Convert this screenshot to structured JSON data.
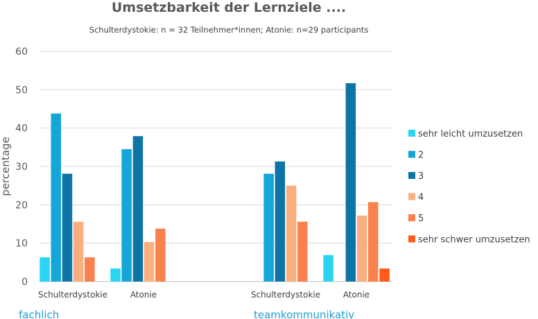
{
  "chart_data": {
    "type": "bar",
    "title": "Umsetzbarkeit der Lernziele ....",
    "subtitle": "Schulterdystokie: n = 32 Teilnehmer*innen; Atonie: n=29 participants",
    "ylabel": "percentage",
    "xlabel": "",
    "ylim": [
      0,
      60
    ],
    "yticks": [
      "0",
      "10",
      "20",
      "30",
      "40",
      "50",
      "60"
    ],
    "grid": true,
    "legend_position": "right",
    "categories": [
      "Schulterdystokie",
      "Atonie",
      "Schulterdystokie",
      "Atonie"
    ],
    "groups": [
      {
        "label": "fachlich",
        "color": "#1f9ed4"
      },
      {
        "label": "teamkommunikativ",
        "color": "#1f9ed4"
      }
    ],
    "series": [
      {
        "name": "sehr leicht umzusetzen",
        "color": "#2ad4f2",
        "values": [
          6.3,
          3.4,
          0,
          6.9
        ]
      },
      {
        "name": "2",
        "color": "#14a6d7",
        "values": [
          43.8,
          34.5,
          28.1,
          0
        ]
      },
      {
        "name": "3",
        "color": "#0e74a6",
        "values": [
          28.1,
          37.9,
          31.3,
          51.7
        ]
      },
      {
        "name": "4",
        "color": "#f9b07e",
        "values": [
          15.6,
          10.3,
          25.0,
          17.2
        ]
      },
      {
        "name": "5",
        "color": "#f9814b",
        "values": [
          6.3,
          13.8,
          15.6,
          20.7
        ]
      },
      {
        "name": "sehr schwer umzusetzen",
        "color": "#ff5a1a",
        "values": [
          0,
          0,
          0,
          3.4
        ]
      }
    ]
  }
}
